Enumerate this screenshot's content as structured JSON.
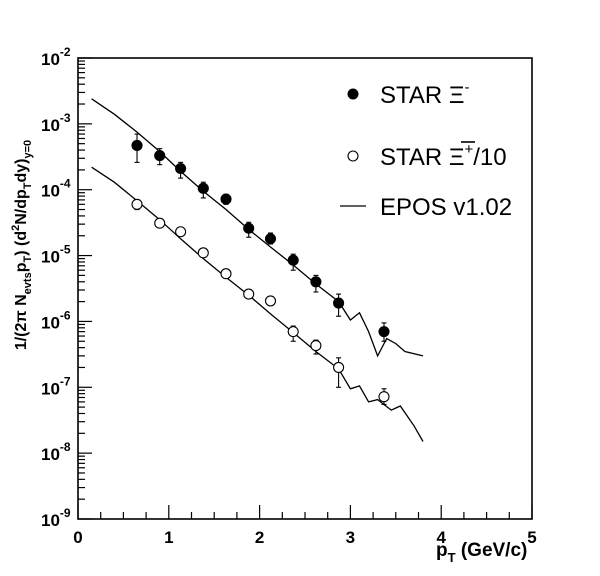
{
  "chart_data": {
    "type": "scatter",
    "title": "",
    "xlabel": {
      "main": "p",
      "sub": "T",
      "unit": "(GeV/c)"
    },
    "ylabel": "1/(2π N_evts p_T) (d²N/dp_T dy)_y=0",
    "xlim": [
      0,
      5
    ],
    "ylim": [
      1e-09,
      0.01
    ],
    "yscale": "log",
    "grid": false,
    "legend_position": "top-right",
    "x_ticks": [
      "0",
      "1",
      "2",
      "3",
      "4",
      "5"
    ],
    "y_ticks": [
      {
        "base": "10",
        "exp": "-9"
      },
      {
        "base": "10",
        "exp": "-8"
      },
      {
        "base": "10",
        "exp": "-7"
      },
      {
        "base": "10",
        "exp": "-6"
      },
      {
        "base": "10",
        "exp": "-5"
      },
      {
        "base": "10",
        "exp": "-4"
      },
      {
        "base": "10",
        "exp": "-3"
      },
      {
        "base": "10",
        "exp": "-2"
      }
    ],
    "legend": [
      {
        "marker": "filled-circle",
        "text": "STAR Ξ",
        "sup": "-",
        "tail": ""
      },
      {
        "marker": "open-circle",
        "text": "STAR Ξ",
        "sup": "+",
        "tail": "/10"
      },
      {
        "marker": "line",
        "text": "EPOS v1.02",
        "sup": "",
        "tail": ""
      }
    ],
    "series": [
      {
        "name": "STAR Ξ-",
        "marker": "filled",
        "points": [
          {
            "x": 0.65,
            "y": 0.00047,
            "lo": 0.00026,
            "hi": 0.0007
          },
          {
            "x": 0.9,
            "y": 0.00033,
            "lo": 0.00024,
            "hi": 0.00042
          },
          {
            "x": 1.13,
            "y": 0.00021,
            "lo": 0.00015,
            "hi": 0.00026
          },
          {
            "x": 1.38,
            "y": 0.000105,
            "lo": 7.5e-05,
            "hi": 0.00013
          },
          {
            "x": 1.63,
            "y": 7.2e-05,
            "lo": 6e-05,
            "hi": 8.5e-05
          },
          {
            "x": 1.88,
            "y": 2.6e-05,
            "lo": 1.9e-05,
            "hi": 3.2e-05
          },
          {
            "x": 2.12,
            "y": 1.8e-05,
            "lo": 1.5e-05,
            "hi": 2.2e-05
          },
          {
            "x": 2.37,
            "y": 8.5e-06,
            "lo": 6e-06,
            "hi": 1.05e-05
          },
          {
            "x": 2.62,
            "y": 4e-06,
            "lo": 2.8e-06,
            "hi": 5e-06
          },
          {
            "x": 2.87,
            "y": 1.9e-06,
            "lo": 1.2e-06,
            "hi": 2.6e-06
          },
          {
            "x": 3.37,
            "y": 7e-07,
            "lo": 5e-07,
            "hi": 9.5e-07
          }
        ]
      },
      {
        "name": "STAR anti-Ξ+/10",
        "marker": "open",
        "points": [
          {
            "x": 0.65,
            "y": 6e-05,
            "lo": 5e-05,
            "hi": 7e-05
          },
          {
            "x": 0.9,
            "y": 3.1e-05,
            "lo": 2.8e-05,
            "hi": 3.4e-05
          },
          {
            "x": 1.13,
            "y": 2.3e-05,
            "lo": 2e-05,
            "hi": 2.6e-05
          },
          {
            "x": 1.38,
            "y": 1.1e-05,
            "lo": 9.5e-06,
            "hi": 1.25e-05
          },
          {
            "x": 1.63,
            "y": 5.3e-06,
            "lo": 4.7e-06,
            "hi": 5.9e-06
          },
          {
            "x": 1.88,
            "y": 2.6e-06,
            "lo": 2.3e-06,
            "hi": 2.9e-06
          },
          {
            "x": 2.12,
            "y": 2.05e-06,
            "lo": 1.8e-06,
            "hi": 2.3e-06
          },
          {
            "x": 2.37,
            "y": 7e-07,
            "lo": 5e-07,
            "hi": 8.5e-07
          },
          {
            "x": 2.62,
            "y": 4.3e-07,
            "lo": 3.2e-07,
            "hi": 5.2e-07
          },
          {
            "x": 2.87,
            "y": 2e-07,
            "lo": 1e-07,
            "hi": 2.8e-07
          },
          {
            "x": 3.37,
            "y": 7.2e-08,
            "lo": 5.5e-08,
            "hi": 9.5e-08
          }
        ]
      }
    ],
    "curves": [
      {
        "name": "EPOS v1.02",
        "points": [
          [
            0.15,
            0.0024
          ],
          [
            0.4,
            0.0014
          ],
          [
            0.65,
            0.00075
          ],
          [
            0.9,
            0.00038
          ],
          [
            1.13,
            0.00019
          ],
          [
            1.38,
            9.5e-05
          ],
          [
            1.63,
            5e-05
          ],
          [
            1.88,
            2.5e-05
          ],
          [
            2.12,
            1.35e-05
          ],
          [
            2.37,
            7.2e-06
          ],
          [
            2.62,
            3.7e-06
          ],
          [
            2.87,
            2e-06
          ],
          [
            3.0,
            1.05e-06
          ],
          [
            3.1,
            1.35e-06
          ],
          [
            3.2,
            7e-07
          ],
          [
            3.3,
            3e-07
          ],
          [
            3.4,
            5.5e-07
          ],
          [
            3.5,
            4.6e-07
          ],
          [
            3.6,
            3.5e-07
          ],
          [
            3.8,
            3e-07
          ]
        ]
      },
      {
        "name": "EPOS v1.02 /10",
        "points": [
          [
            0.15,
            0.00022
          ],
          [
            0.4,
            0.00013
          ],
          [
            0.65,
            6.8e-05
          ],
          [
            0.9,
            3.5e-05
          ],
          [
            1.13,
            1.8e-05
          ],
          [
            1.38,
            9e-06
          ],
          [
            1.63,
            4.7e-06
          ],
          [
            1.88,
            2.5e-06
          ],
          [
            2.12,
            1.3e-06
          ],
          [
            2.37,
            6.8e-07
          ],
          [
            2.62,
            3.5e-07
          ],
          [
            2.87,
            1.9e-07
          ],
          [
            3.0,
            9.5e-08
          ],
          [
            3.1,
            1.05e-07
          ],
          [
            3.2,
            6e-08
          ],
          [
            3.3,
            6.5e-08
          ],
          [
            3.45,
            4.5e-08
          ],
          [
            3.55,
            5.2e-08
          ],
          [
            3.7,
            2.6e-08
          ],
          [
            3.8,
            1.5e-08
          ]
        ]
      }
    ]
  }
}
